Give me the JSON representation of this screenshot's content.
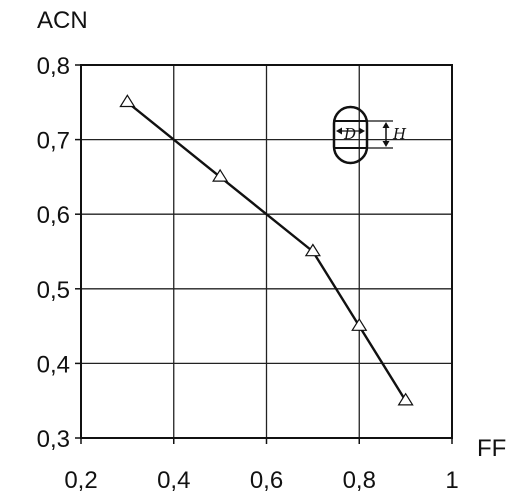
{
  "chart_data": {
    "type": "line",
    "xlabel": "FF",
    "ylabel": "ACN",
    "xlim": [
      0.2,
      1.0
    ],
    "ylim": [
      0.3,
      0.8
    ],
    "x_ticks": [
      "0,2",
      "0,4",
      "0,6",
      "0,8",
      "1"
    ],
    "y_ticks": [
      "0,8",
      "0,7",
      "0,6",
      "0,5",
      "0,4",
      "0,3"
    ],
    "grid": true,
    "marker": "triangle-open",
    "series": [
      {
        "x": [
          0.3,
          0.5,
          0.7,
          0.8,
          0.9
        ],
        "y": [
          0.75,
          0.65,
          0.55,
          0.45,
          0.35
        ]
      }
    ],
    "inset": {
      "diameter_label": "D",
      "height_label": "H"
    }
  },
  "colors": {
    "line": "#111111",
    "grid": "#222222"
  }
}
